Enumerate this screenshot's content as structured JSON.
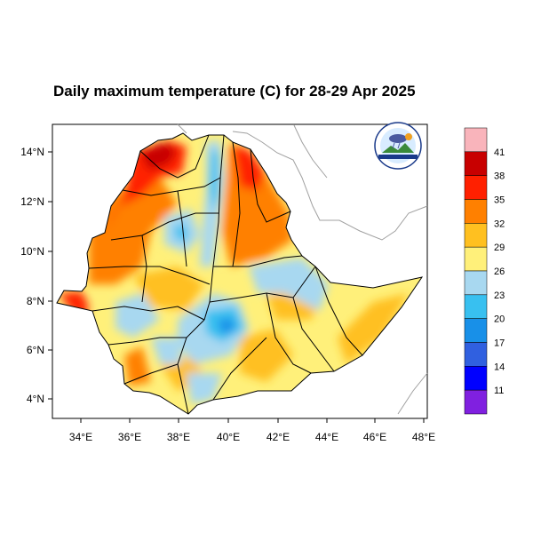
{
  "title": "Daily maximum temperature (C) for 28-29 Apr 2025",
  "map": {
    "lon_ticks": [
      "34°E",
      "36°E",
      "38°E",
      "40°E",
      "42°E",
      "44°E",
      "46°E",
      "48°E"
    ],
    "lat_ticks": [
      "4°N",
      "6°N",
      "8°N",
      "10°N",
      "12°N",
      "14°N"
    ],
    "lon_range": [
      33,
      48.2
    ],
    "lat_range": [
      3.2,
      15
    ]
  },
  "colorbar": {
    "labels": [
      "41",
      "38",
      "35",
      "32",
      "29",
      "26",
      "23",
      "20",
      "17",
      "14",
      "11"
    ],
    "colors": [
      "#f9b4bb",
      "#c80000",
      "#ff2000",
      "#ff8000",
      "#ffc020",
      "#fff07a",
      "#a8d8f0",
      "#38c0f0",
      "#1890e8",
      "#3060e0",
      "#0000ff",
      "#8020e0"
    ]
  },
  "colors": {
    "outline": "#000000",
    "neighbor_border": "#a0a0a0"
  },
  "logo": {
    "icon": "meteorology-agency-logo"
  }
}
